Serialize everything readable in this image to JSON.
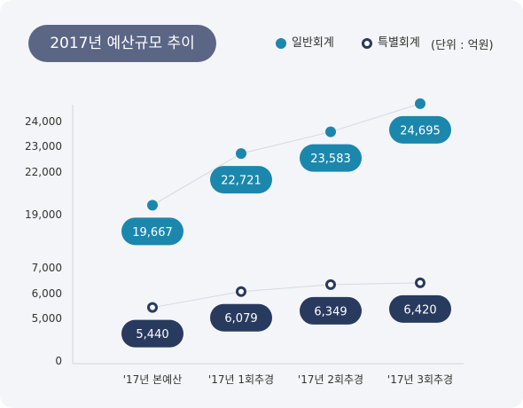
{
  "title": "2017년 예산규모 추이",
  "legend": {
    "general": "일반회계",
    "special": "특별회계",
    "unit": "(단위 : 억원)"
  },
  "colors": {
    "general": "#1c87ad",
    "special": "#283a5e",
    "title_bg": "#5b6685"
  },
  "chart_data": {
    "type": "line",
    "title": "2017년 예산규모 추이",
    "unit": "(단위 : 억원)",
    "categories": [
      "'17년 본예산",
      "'17년 1회추경",
      "'17년 2회추경",
      "'17년 3회추경"
    ],
    "series": [
      {
        "name": "일반회계",
        "values": [
          19667,
          22721,
          23583,
          24695
        ],
        "labels": [
          "19,667",
          "22,721",
          "23,583",
          "24,695"
        ]
      },
      {
        "name": "특별회계",
        "values": [
          5440,
          6079,
          6349,
          6420
        ],
        "labels": [
          "5,440",
          "6,079",
          "6,349",
          "6,420"
        ]
      }
    ],
    "y_ticks": [
      {
        "value": 0,
        "label": "0"
      },
      {
        "value": 5000,
        "label": "5,000"
      },
      {
        "value": 6000,
        "label": "6,000"
      },
      {
        "value": 7000,
        "label": "7,000"
      },
      {
        "value": 19000,
        "label": "19,000"
      },
      {
        "value": 22000,
        "label": "22,000"
      },
      {
        "value": 23000,
        "label": "23,000"
      },
      {
        "value": 24000,
        "label": "24,000"
      }
    ],
    "y_axis_broken": true,
    "grid": false
  }
}
